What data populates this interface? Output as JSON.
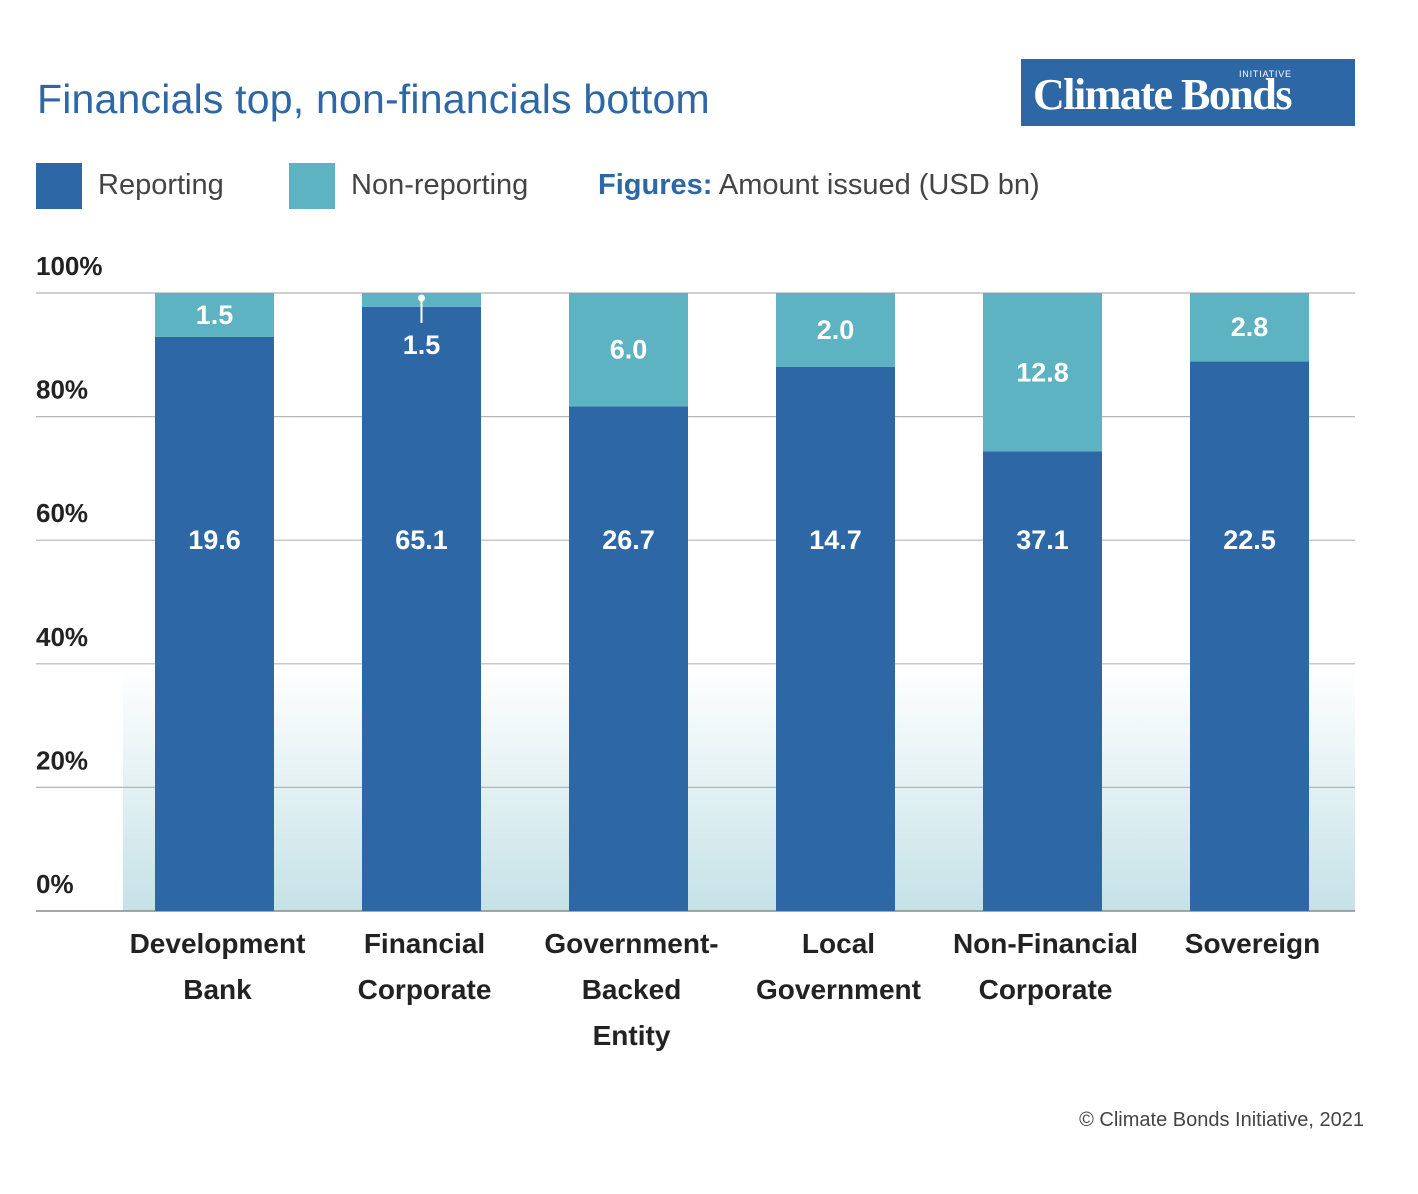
{
  "title": "Financials top, non-financials bottom",
  "logo": {
    "text": "Climate Bonds",
    "subtext": "INITIATIVE"
  },
  "legend": [
    {
      "label": "Reporting",
      "color": "#2d67a6"
    },
    {
      "label": "Non-reporting",
      "color": "#5db3c1"
    }
  ],
  "figures_note": {
    "key": "Figures:",
    "text": "Amount issued (USD bn)"
  },
  "copyright": "© Climate Bonds Initiative, 2021",
  "chart_data": {
    "type": "bar",
    "stacked": true,
    "percent_stacked": true,
    "categories": [
      [
        "Development",
        "Bank"
      ],
      [
        "Financial",
        "Corporate"
      ],
      [
        "Government-",
        "Backed",
        "Entity"
      ],
      [
        "Local",
        "Government"
      ],
      [
        "Non-Financial",
        "Corporate"
      ],
      [
        "Sovereign"
      ]
    ],
    "series": [
      {
        "name": "Reporting",
        "color": "#2d67a6",
        "values": [
          19.6,
          65.1,
          26.7,
          14.7,
          37.1,
          22.5
        ]
      },
      {
        "name": "Non-reporting",
        "color": "#5db3c1",
        "values": [
          1.5,
          1.5,
          6.0,
          2.0,
          12.8,
          2.8
        ]
      }
    ],
    "y_ticks": [
      "0%",
      "20%",
      "40%",
      "60%",
      "80%",
      "100%"
    ],
    "ylim": [
      0,
      100
    ],
    "grid": true
  }
}
